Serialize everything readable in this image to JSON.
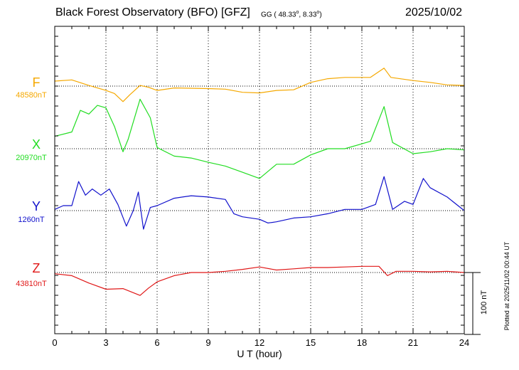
{
  "header": {
    "title": "Black Forest Observatory (BFO)  [GFZ]",
    "coords_prefix": "GG ( 48.33",
    "coords_mid": ",   8.33",
    "coords_end": ")",
    "coords_degree": "o",
    "date": "2025/10/02"
  },
  "plotted_note": "Plotted at 2025/11/02 00:44 UT",
  "scale_label": "100 nT",
  "chart_data": {
    "type": "line",
    "xlabel": "U T (hour)",
    "xlim": [
      0,
      24
    ],
    "x_ticks": [
      "0",
      "3",
      "6",
      "9",
      "12",
      "15",
      "18",
      "21",
      "24"
    ],
    "scale_bar_nT": 100,
    "grid": true,
    "series": [
      {
        "name": "F",
        "baseline_label": "48580nT",
        "baseline_nT": 48580,
        "color": "#f5a800",
        "points": [
          [
            0,
            48588
          ],
          [
            1,
            48590
          ],
          [
            2,
            48581
          ],
          [
            3,
            48573
          ],
          [
            3.5,
            48568
          ],
          [
            4,
            48555
          ],
          [
            4.4,
            48566
          ],
          [
            5,
            48581
          ],
          [
            5.5,
            48578
          ],
          [
            6,
            48573
          ],
          [
            7,
            48577
          ],
          [
            9,
            48576
          ],
          [
            10,
            48575
          ],
          [
            11,
            48570
          ],
          [
            12,
            48569
          ],
          [
            13,
            48573
          ],
          [
            14,
            48574
          ],
          [
            15,
            48586
          ],
          [
            16,
            48592
          ],
          [
            17,
            48594
          ],
          [
            18.5,
            48594
          ],
          [
            19.3,
            48609
          ],
          [
            19.7,
            48594
          ],
          [
            21,
            48589
          ],
          [
            22,
            48586
          ],
          [
            23,
            48582
          ],
          [
            24,
            48581
          ]
        ]
      },
      {
        "name": "X",
        "baseline_label": "20970nT",
        "baseline_nT": 20970,
        "color": "#22dd22",
        "points": [
          [
            0,
            20990
          ],
          [
            1,
            20997
          ],
          [
            1.5,
            21032
          ],
          [
            2,
            21026
          ],
          [
            2.5,
            21040
          ],
          [
            3,
            21036
          ],
          [
            3.5,
            21006
          ],
          [
            4,
            20965
          ],
          [
            4.3,
            20985
          ],
          [
            5,
            21050
          ],
          [
            5.6,
            21020
          ],
          [
            6,
            20972
          ],
          [
            7,
            20958
          ],
          [
            8,
            20955
          ],
          [
            9,
            20948
          ],
          [
            10,
            20942
          ],
          [
            11,
            20932
          ],
          [
            12,
            20922
          ],
          [
            13,
            20945
          ],
          [
            14,
            20945
          ],
          [
            15,
            20960
          ],
          [
            16,
            20970
          ],
          [
            17,
            20970
          ],
          [
            18.5,
            20982
          ],
          [
            19.3,
            21038
          ],
          [
            19.8,
            20980
          ],
          [
            21,
            20962
          ],
          [
            22,
            20965
          ],
          [
            23,
            20970
          ],
          [
            24,
            20968
          ]
        ]
      },
      {
        "name": "Y",
        "baseline_label": "1260nT",
        "baseline_nT": 1260,
        "color": "#1111cc",
        "points": [
          [
            0,
            1262
          ],
          [
            0.5,
            1268
          ],
          [
            1,
            1268
          ],
          [
            1.4,
            1307
          ],
          [
            1.8,
            1285
          ],
          [
            2.2,
            1295
          ],
          [
            2.7,
            1285
          ],
          [
            3.2,
            1295
          ],
          [
            3.7,
            1270
          ],
          [
            4.2,
            1235
          ],
          [
            4.6,
            1260
          ],
          [
            4.9,
            1290
          ],
          [
            5.2,
            1230
          ],
          [
            5.6,
            1265
          ],
          [
            6,
            1268
          ],
          [
            7,
            1280
          ],
          [
            8,
            1284
          ],
          [
            9,
            1282
          ],
          [
            10,
            1278
          ],
          [
            10.5,
            1255
          ],
          [
            11,
            1250
          ],
          [
            12,
            1246
          ],
          [
            12.5,
            1240
          ],
          [
            13,
            1242
          ],
          [
            14,
            1248
          ],
          [
            15,
            1250
          ],
          [
            16,
            1255
          ],
          [
            17,
            1262
          ],
          [
            18,
            1262
          ],
          [
            18.8,
            1270
          ],
          [
            19.3,
            1315
          ],
          [
            19.8,
            1262
          ],
          [
            20.5,
            1275
          ],
          [
            21,
            1270
          ],
          [
            21.6,
            1312
          ],
          [
            22,
            1297
          ],
          [
            23,
            1282
          ],
          [
            24,
            1260
          ]
        ]
      },
      {
        "name": "Z",
        "baseline_label": "43810nT",
        "baseline_nT": 43810,
        "color": "#e01818",
        "points": [
          [
            0,
            43808
          ],
          [
            1,
            43805
          ],
          [
            2,
            43793
          ],
          [
            3,
            43783
          ],
          [
            4,
            43784
          ],
          [
            5,
            43773
          ],
          [
            5.5,
            43785
          ],
          [
            6,
            43795
          ],
          [
            7,
            43805
          ],
          [
            8,
            43810
          ],
          [
            9,
            43810
          ],
          [
            10,
            43812
          ],
          [
            11,
            43815
          ],
          [
            12,
            43819
          ],
          [
            13,
            43814
          ],
          [
            14,
            43816
          ],
          [
            15,
            43818
          ],
          [
            16,
            43818
          ],
          [
            17,
            43819
          ],
          [
            18,
            43820
          ],
          [
            19,
            43820
          ],
          [
            19.5,
            43805
          ],
          [
            20,
            43812
          ],
          [
            21,
            43812
          ],
          [
            22,
            43811
          ],
          [
            23,
            43812
          ],
          [
            24,
            43810
          ]
        ]
      }
    ]
  }
}
